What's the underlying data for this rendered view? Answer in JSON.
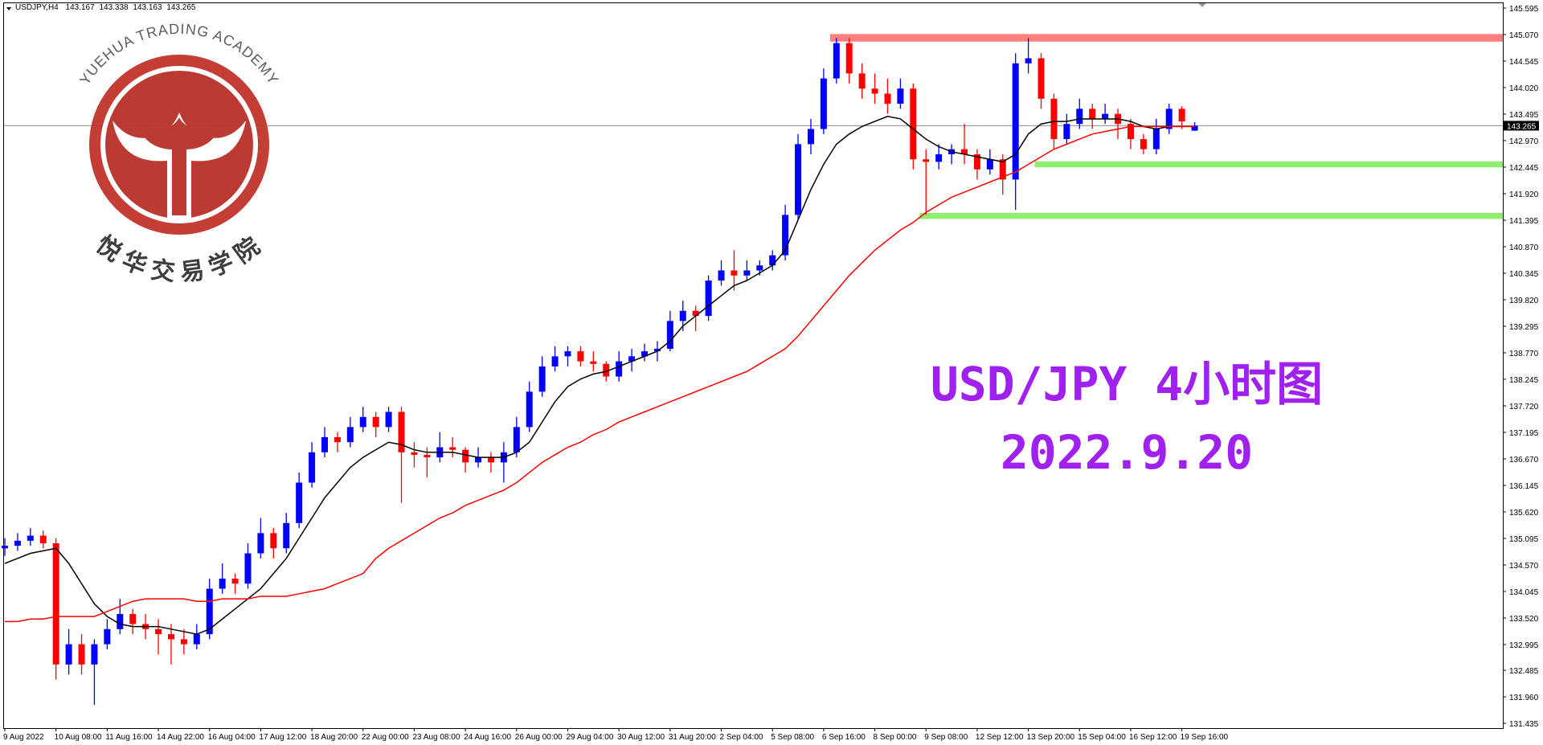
{
  "chart_data": {
    "type": "candlestick",
    "symbol": "USDJPY,H4",
    "categories": [
      "9 Aug 2022",
      null,
      null,
      null,
      "10 Aug 08:00",
      null,
      null,
      null,
      "11 Aug 16:00",
      null,
      null,
      null,
      "14 Aug 22:00",
      null,
      null,
      null,
      "16 Aug 04:00",
      null,
      null,
      null,
      "17 Aug 12:00",
      null,
      null,
      null,
      "18 Aug 20:00",
      null,
      null,
      null,
      "22 Aug 00:00",
      null,
      null,
      null,
      "23 Aug 08:00",
      null,
      null,
      null,
      "24 Aug 16:00",
      null,
      null,
      null,
      "26 Aug 00:00",
      null,
      null,
      null,
      "29 Aug 04:00",
      null,
      null,
      null,
      "30 Aug 12:00",
      null,
      null,
      null,
      "31 Aug 20:00",
      null,
      null,
      null,
      "2 Sep 04:00",
      null,
      null,
      null,
      "5 Sep 08:00",
      null,
      null,
      null,
      "6 Sep 16:00",
      null,
      null,
      null,
      "8 Sep 00:00",
      null,
      null,
      null,
      "9 Sep 08:00",
      null,
      null,
      null,
      "12 Sep 12:00",
      null,
      null,
      null,
      "13 Sep 20:00",
      null,
      null,
      null,
      "15 Sep 04:00",
      null,
      null,
      null,
      "16 Sep 12:00",
      null,
      null,
      null,
      "19 Sep 16:00",
      null
    ],
    "open": [
      134.9,
      134.95,
      135.05,
      135.15,
      135.0,
      132.6,
      133.0,
      132.6,
      133.0,
      133.3,
      133.6,
      133.4,
      133.3,
      133.2,
      133.1,
      133.0,
      133.2,
      134.1,
      134.3,
      134.2,
      134.8,
      135.2,
      134.9,
      135.4,
      136.2,
      136.8,
      137.1,
      137.0,
      137.3,
      137.5,
      137.3,
      137.6,
      136.8,
      136.75,
      136.7,
      136.9,
      136.85,
      136.6,
      136.7,
      136.6,
      136.8,
      137.3,
      138.0,
      138.5,
      138.7,
      138.8,
      138.6,
      138.55,
      138.3,
      138.6,
      138.7,
      138.8,
      138.85,
      139.4,
      139.6,
      139.5,
      140.2,
      140.4,
      140.3,
      140.4,
      140.5,
      140.7,
      141.5,
      142.9,
      143.2,
      144.2,
      144.9,
      144.3,
      144.0,
      143.9,
      143.7,
      144.0,
      142.6,
      142.55,
      142.7,
      142.8,
      142.7,
      142.4,
      142.6,
      142.2,
      144.5,
      144.6,
      143.8,
      143.0,
      143.3,
      143.6,
      143.4,
      143.5,
      143.3,
      143.0,
      142.8,
      143.2,
      143.6,
      143.167
    ],
    "high": [
      135.1,
      135.2,
      135.3,
      135.25,
      135.1,
      133.3,
      133.2,
      133.1,
      133.5,
      133.9,
      133.7,
      133.6,
      133.5,
      133.4,
      133.3,
      133.4,
      134.3,
      134.6,
      134.4,
      135.0,
      135.5,
      135.3,
      135.6,
      136.4,
      137.0,
      137.3,
      137.2,
      137.5,
      137.7,
      137.6,
      137.7,
      137.7,
      137.0,
      136.9,
      137.2,
      137.1,
      136.9,
      136.9,
      136.8,
      137.0,
      137.5,
      138.2,
      138.7,
      138.9,
      138.9,
      138.9,
      138.8,
      138.6,
      138.8,
      138.85,
      138.95,
      139.0,
      139.6,
      139.8,
      139.7,
      140.3,
      140.6,
      140.8,
      140.6,
      140.6,
      140.8,
      141.7,
      143.1,
      143.4,
      144.4,
      145.0,
      145.0,
      144.5,
      144.3,
      144.2,
      144.2,
      144.1,
      142.8,
      142.9,
      142.9,
      143.3,
      142.8,
      142.8,
      142.7,
      144.7,
      145.0,
      144.7,
      143.9,
      143.5,
      143.8,
      143.7,
      143.7,
      143.6,
      143.4,
      143.1,
      143.4,
      143.7,
      143.65,
      143.338
    ],
    "low": [
      134.75,
      134.85,
      134.95,
      134.9,
      132.3,
      132.4,
      132.4,
      131.8,
      132.9,
      133.2,
      133.2,
      133.1,
      132.8,
      132.6,
      132.8,
      132.9,
      133.1,
      134.0,
      134.0,
      134.1,
      134.7,
      134.7,
      134.8,
      135.3,
      136.1,
      136.7,
      136.8,
      136.9,
      137.2,
      137.1,
      137.2,
      135.8,
      136.5,
      136.3,
      136.6,
      136.7,
      136.4,
      136.5,
      136.4,
      136.2,
      136.7,
      137.2,
      137.9,
      138.4,
      138.5,
      138.5,
      138.4,
      138.2,
      138.2,
      138.4,
      138.6,
      138.6,
      138.8,
      139.2,
      139.2,
      139.4,
      140.1,
      140.0,
      140.2,
      140.3,
      140.4,
      140.6,
      141.4,
      142.7,
      143.1,
      144.1,
      144.1,
      143.8,
      143.7,
      143.5,
      143.6,
      142.4,
      141.5,
      142.4,
      142.5,
      142.5,
      142.2,
      142.3,
      141.9,
      141.6,
      144.3,
      143.6,
      142.8,
      142.9,
      143.2,
      143.2,
      143.3,
      143.0,
      142.8,
      142.7,
      142.7,
      143.1,
      143.2,
      143.163
    ],
    "close": [
      134.95,
      135.05,
      135.15,
      135.0,
      132.6,
      133.0,
      132.6,
      133.0,
      133.3,
      133.6,
      133.4,
      133.3,
      133.2,
      133.1,
      133.0,
      133.2,
      134.1,
      134.3,
      134.2,
      134.8,
      135.2,
      134.9,
      135.4,
      136.2,
      136.8,
      137.1,
      137.0,
      137.3,
      137.5,
      137.3,
      137.6,
      136.8,
      136.75,
      136.7,
      136.9,
      136.85,
      136.6,
      136.7,
      136.6,
      136.8,
      137.3,
      138.0,
      138.5,
      138.7,
      138.8,
      138.6,
      138.55,
      138.3,
      138.6,
      138.7,
      138.8,
      138.85,
      139.4,
      139.6,
      139.5,
      140.2,
      140.4,
      140.3,
      140.4,
      140.5,
      140.7,
      141.5,
      142.9,
      143.2,
      144.2,
      144.9,
      144.3,
      144.0,
      143.9,
      143.7,
      144.0,
      142.6,
      142.55,
      142.7,
      142.8,
      142.7,
      142.4,
      142.6,
      142.2,
      144.5,
      144.6,
      143.8,
      143.0,
      143.3,
      143.6,
      143.4,
      143.5,
      143.3,
      143.0,
      142.8,
      143.2,
      143.6,
      143.35,
      143.265
    ],
    "up_color": "#0000ff",
    "down_color": "#ff0000",
    "series": [
      {
        "color": "#000000",
        "values": [
          134.6,
          134.7,
          134.8,
          134.85,
          134.9,
          134.6,
          134.2,
          133.8,
          133.55,
          133.4,
          133.35,
          133.35,
          133.35,
          133.3,
          133.25,
          133.2,
          133.3,
          133.5,
          133.7,
          133.9,
          134.1,
          134.4,
          134.7,
          135.1,
          135.5,
          135.9,
          136.2,
          136.5,
          136.7,
          136.85,
          137.0,
          136.95,
          136.85,
          136.8,
          136.8,
          136.8,
          136.75,
          136.7,
          136.7,
          136.7,
          136.8,
          137.0,
          137.4,
          137.8,
          138.1,
          138.25,
          138.35,
          138.4,
          138.5,
          138.6,
          138.7,
          138.8,
          139.0,
          139.3,
          139.5,
          139.7,
          139.9,
          140.1,
          140.2,
          140.35,
          140.5,
          140.8,
          141.4,
          142.0,
          142.5,
          142.9,
          143.1,
          143.25,
          143.35,
          143.45,
          143.4,
          143.2,
          143.0,
          142.85,
          142.75,
          142.7,
          142.65,
          142.6,
          142.55,
          142.7,
          143.1,
          143.3,
          143.35,
          143.35,
          143.4,
          143.4,
          143.4,
          143.4,
          143.35,
          143.25,
          143.2,
          143.25,
          143.25,
          143.25
        ]
      },
      {
        "color": "#ff0000",
        "values": [
          133.45,
          133.45,
          133.5,
          133.5,
          133.55,
          133.55,
          133.55,
          133.55,
          133.65,
          133.75,
          133.85,
          133.9,
          133.9,
          133.9,
          133.9,
          133.85,
          133.85,
          133.9,
          133.9,
          133.9,
          133.95,
          133.95,
          133.95,
          134.0,
          134.05,
          134.1,
          134.2,
          134.3,
          134.4,
          134.7,
          134.9,
          135.05,
          135.2,
          135.35,
          135.5,
          135.6,
          135.75,
          135.85,
          135.95,
          136.05,
          136.2,
          136.4,
          136.6,
          136.75,
          136.9,
          137.0,
          137.15,
          137.25,
          137.4,
          137.5,
          137.6,
          137.7,
          137.8,
          137.9,
          138.0,
          138.1,
          138.2,
          138.3,
          138.4,
          138.55,
          138.7,
          138.85,
          139.1,
          139.4,
          139.7,
          140.0,
          140.3,
          140.55,
          140.8,
          141.0,
          141.2,
          141.35,
          141.55,
          141.7,
          141.85,
          141.95,
          142.05,
          142.15,
          142.25,
          142.35,
          142.5,
          142.65,
          142.8,
          142.9,
          143.0,
          143.1,
          143.15,
          143.2,
          143.25,
          143.25,
          143.25,
          143.25,
          143.25,
          143.25
        ]
      }
    ],
    "zones": [
      {
        "color": "#ff8080",
        "low": 144.93,
        "high": 145.08,
        "start": 65
      },
      {
        "color": "#90ee70",
        "low": 142.44,
        "high": 142.56,
        "start": 81
      },
      {
        "color": "#90ee70",
        "low": 141.42,
        "high": 141.54,
        "start": 72
      }
    ],
    "ylim": [
      131.34,
      145.69
    ],
    "yticks": [
      145.595,
      {
        "value": 145.07,
        "label": "145.070"
      },
      144.545,
      {
        "value": 144.02,
        "label": "144.020"
      },
      143.495,
      {
        "value": 142.97,
        "label": "142.970"
      },
      142.445,
      {
        "value": 141.92,
        "label": "141.920"
      },
      141.395,
      {
        "value": 140.87,
        "label": "140.870"
      },
      140.345,
      {
        "value": 139.82,
        "label": "139.820"
      },
      139.295,
      {
        "value": 138.77,
        "label": "138.770"
      },
      138.245,
      {
        "value": 137.72,
        "label": "137.720"
      },
      137.195,
      {
        "value": 136.67,
        "label": "136.670"
      },
      136.145,
      {
        "value": 135.62,
        "label": "135.620"
      },
      135.095,
      {
        "value": 134.57,
        "label": "134.570"
      },
      134.045,
      {
        "value": 133.52,
        "label": "133.520"
      },
      132.995,
      132.485,
      {
        "value": 131.96,
        "label": "131.960"
      },
      131.435
    ],
    "grid": false
  },
  "logo": {
    "text": "YUEHUA TRADING ACADEMY",
    "name": "悦华交易学院"
  },
  "annotations": [
    "USD/JPY 4小时图",
    "2022.9.20"
  ]
}
